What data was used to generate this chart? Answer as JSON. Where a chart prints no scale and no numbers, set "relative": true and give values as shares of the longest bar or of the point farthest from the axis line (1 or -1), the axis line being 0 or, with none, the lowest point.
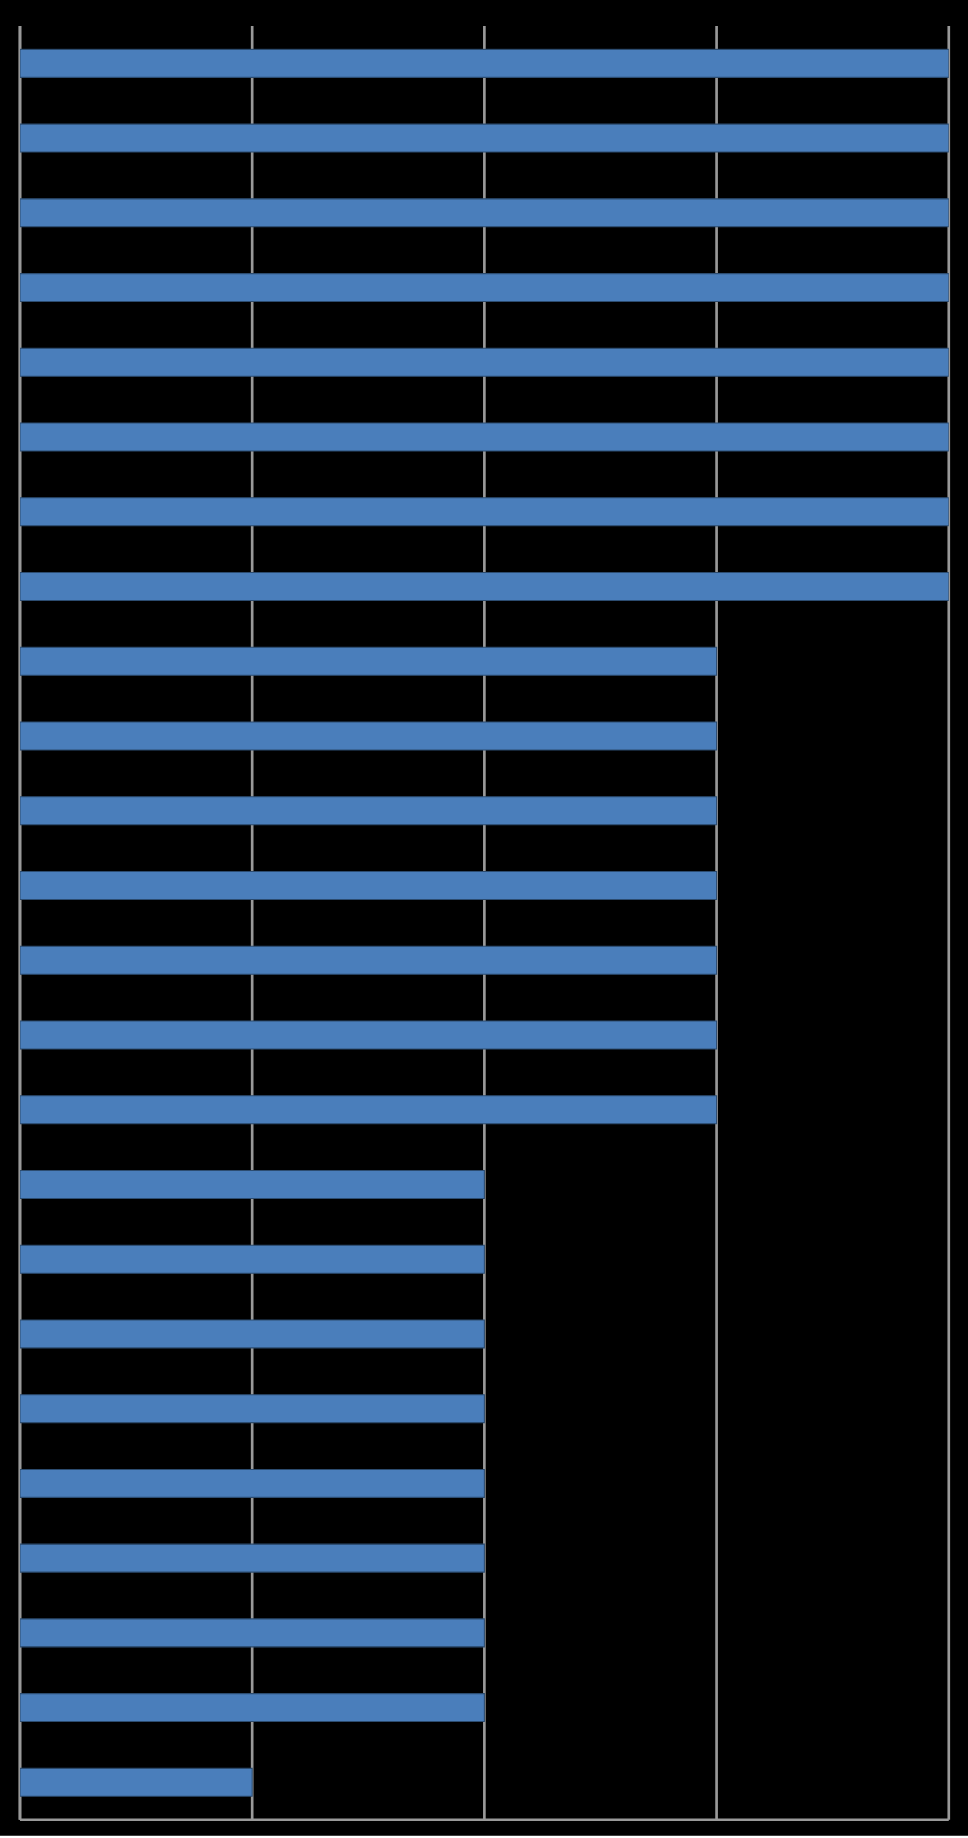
{
  "chart_data": {
    "type": "bar",
    "orientation": "horizontal",
    "relative": true,
    "grid": "x",
    "color": "#4a7ebb",
    "categories": [
      null,
      null,
      null,
      null,
      null,
      null,
      null,
      null,
      null,
      null,
      null,
      null,
      null,
      null,
      null,
      null,
      null,
      null,
      null,
      null,
      null,
      null,
      null,
      null
    ],
    "values": [
      1,
      1,
      1,
      1,
      1,
      1,
      1,
      1,
      0.75,
      0.75,
      0.75,
      0.75,
      0.75,
      0.75,
      0.75,
      0.5,
      0.5,
      0.5,
      0.5,
      0.5,
      0.5,
      0.5,
      0.5,
      0.25
    ]
  }
}
